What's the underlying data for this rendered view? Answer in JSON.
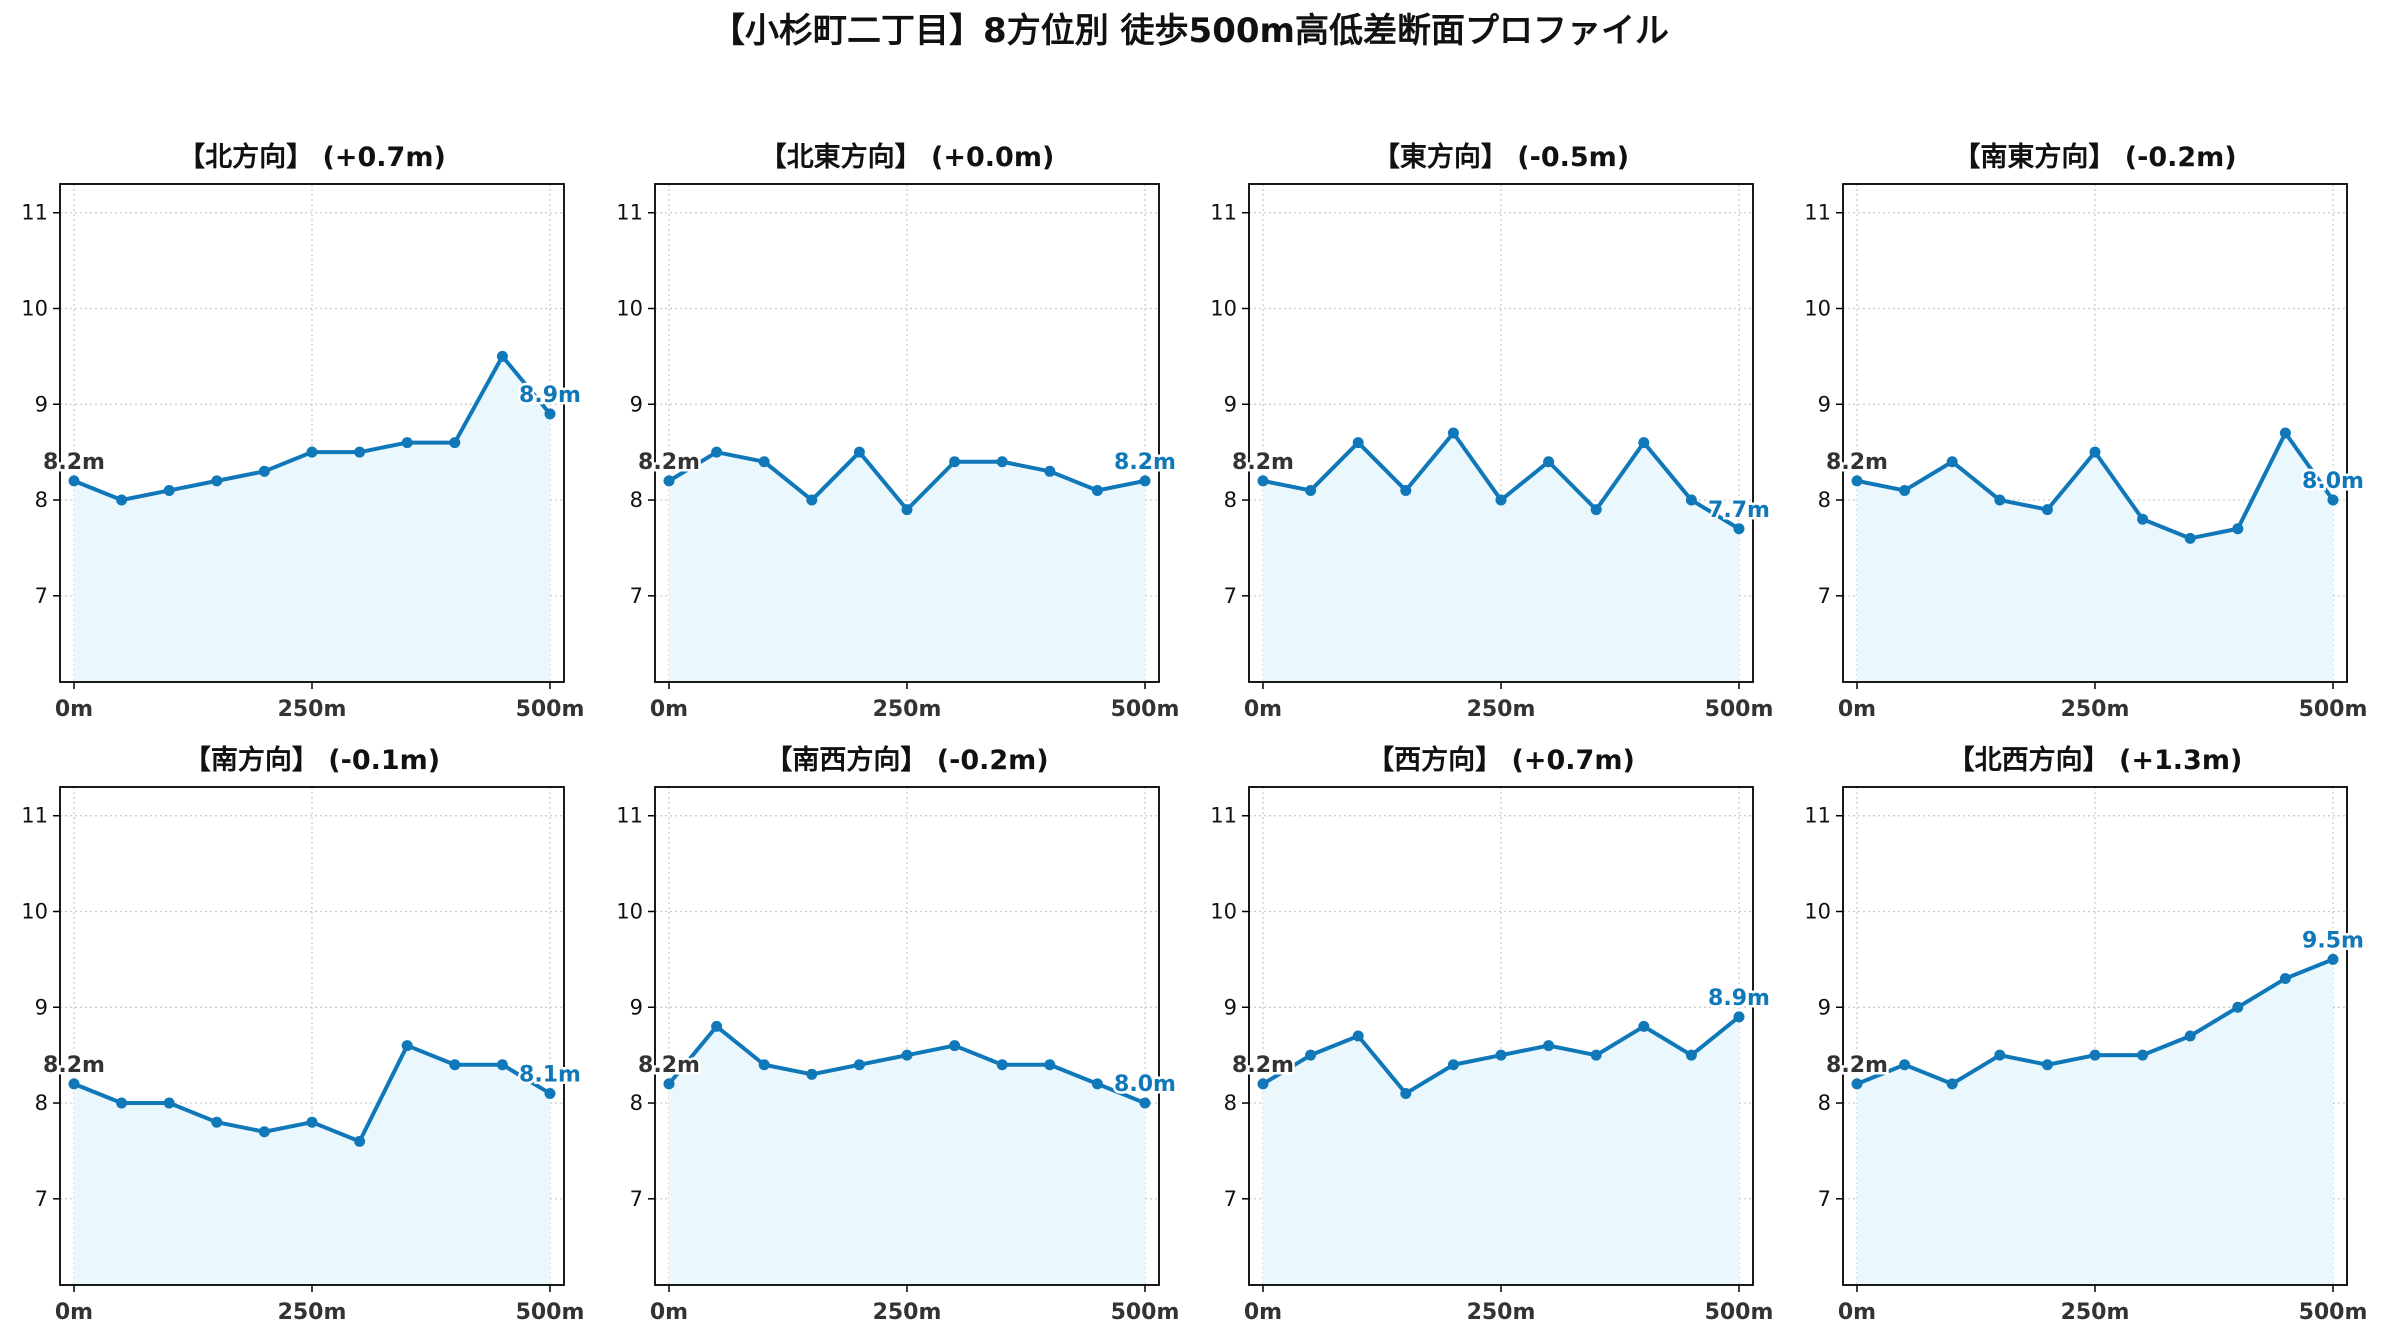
{
  "figure_title": "【小杉町二丁目】8方位別 徒歩500m高低差断面プロファイル",
  "colors": {
    "line": "#1078b8",
    "fill": "#eaf7fc",
    "start_label": "#333333",
    "end_label": "#1078b8",
    "grid": "#c8c8c8",
    "axis": "#000000"
  },
  "chart_data": [
    {
      "type": "area",
      "title": "【北方向】 (+0.7m)",
      "x": [
        0,
        50,
        100,
        150,
        200,
        250,
        300,
        350,
        400,
        450,
        500
      ],
      "y": [
        8.2,
        8.0,
        8.1,
        8.2,
        8.3,
        8.5,
        8.5,
        8.6,
        8.6,
        9.5,
        8.9
      ],
      "xticks": [
        "0m",
        "250m",
        "500m"
      ],
      "yticks": [
        7,
        8,
        9,
        10,
        11
      ],
      "ylim": [
        6.1,
        11.3
      ],
      "start_label": "8.2m",
      "end_label": "8.9m",
      "grid": true
    },
    {
      "type": "area",
      "title": "【北東方向】 (+0.0m)",
      "x": [
        0,
        50,
        100,
        150,
        200,
        250,
        300,
        350,
        400,
        450,
        500
      ],
      "y": [
        8.2,
        8.5,
        8.4,
        8.0,
        8.5,
        7.9,
        8.4,
        8.4,
        8.3,
        8.1,
        8.2
      ],
      "xticks": [
        "0m",
        "250m",
        "500m"
      ],
      "yticks": [
        7,
        8,
        9,
        10,
        11
      ],
      "ylim": [
        6.1,
        11.3
      ],
      "start_label": "8.2m",
      "end_label": "8.2m",
      "grid": true
    },
    {
      "type": "area",
      "title": "【東方向】 (-0.5m)",
      "x": [
        0,
        50,
        100,
        150,
        200,
        250,
        300,
        350,
        400,
        450,
        500
      ],
      "y": [
        8.2,
        8.1,
        8.6,
        8.1,
        8.7,
        8.0,
        8.4,
        7.9,
        8.6,
        8.0,
        7.7
      ],
      "xticks": [
        "0m",
        "250m",
        "500m"
      ],
      "yticks": [
        7,
        8,
        9,
        10,
        11
      ],
      "ylim": [
        6.1,
        11.3
      ],
      "start_label": "8.2m",
      "end_label": "7.7m",
      "grid": true
    },
    {
      "type": "area",
      "title": "【南東方向】 (-0.2m)",
      "x": [
        0,
        50,
        100,
        150,
        200,
        250,
        300,
        350,
        400,
        450,
        500
      ],
      "y": [
        8.2,
        8.1,
        8.4,
        8.0,
        7.9,
        8.5,
        7.8,
        7.6,
        7.7,
        8.7,
        8.0
      ],
      "xticks": [
        "0m",
        "250m",
        "500m"
      ],
      "yticks": [
        7,
        8,
        9,
        10,
        11
      ],
      "ylim": [
        6.1,
        11.3
      ],
      "start_label": "8.2m",
      "end_label": "8.0m",
      "grid": true
    },
    {
      "type": "area",
      "title": "【南方向】 (-0.1m)",
      "x": [
        0,
        50,
        100,
        150,
        200,
        250,
        300,
        350,
        400,
        450,
        500
      ],
      "y": [
        8.2,
        8.0,
        8.0,
        7.8,
        7.7,
        7.8,
        7.6,
        8.6,
        8.4,
        8.4,
        8.1
      ],
      "xticks": [
        "0m",
        "250m",
        "500m"
      ],
      "yticks": [
        7,
        8,
        9,
        10,
        11
      ],
      "ylim": [
        6.1,
        11.3
      ],
      "start_label": "8.2m",
      "end_label": "8.1m",
      "grid": true
    },
    {
      "type": "area",
      "title": "【南西方向】 (-0.2m)",
      "x": [
        0,
        50,
        100,
        150,
        200,
        250,
        300,
        350,
        400,
        450,
        500
      ],
      "y": [
        8.2,
        8.8,
        8.4,
        8.3,
        8.4,
        8.5,
        8.6,
        8.4,
        8.4,
        8.2,
        8.0
      ],
      "xticks": [
        "0m",
        "250m",
        "500m"
      ],
      "yticks": [
        7,
        8,
        9,
        10,
        11
      ],
      "ylim": [
        6.1,
        11.3
      ],
      "start_label": "8.2m",
      "end_label": "8.0m",
      "grid": true
    },
    {
      "type": "area",
      "title": "【西方向】 (+0.7m)",
      "x": [
        0,
        50,
        100,
        150,
        200,
        250,
        300,
        350,
        400,
        450,
        500
      ],
      "y": [
        8.2,
        8.5,
        8.7,
        8.1,
        8.4,
        8.5,
        8.6,
        8.5,
        8.8,
        8.5,
        8.9
      ],
      "xticks": [
        "0m",
        "250m",
        "500m"
      ],
      "yticks": [
        7,
        8,
        9,
        10,
        11
      ],
      "ylim": [
        6.1,
        11.3
      ],
      "start_label": "8.2m",
      "end_label": "8.9m",
      "grid": true
    },
    {
      "type": "area",
      "title": "【北西方向】 (+1.3m)",
      "x": [
        0,
        50,
        100,
        150,
        200,
        250,
        300,
        350,
        400,
        450,
        500
      ],
      "y": [
        8.2,
        8.4,
        8.2,
        8.5,
        8.4,
        8.5,
        8.5,
        8.7,
        9.0,
        9.3,
        9.5
      ],
      "xticks": [
        "0m",
        "250m",
        "500m"
      ],
      "yticks": [
        7,
        8,
        9,
        10,
        11
      ],
      "ylim": [
        6.1,
        11.3
      ],
      "start_label": "8.2m",
      "end_label": "9.5m",
      "grid": true
    }
  ]
}
